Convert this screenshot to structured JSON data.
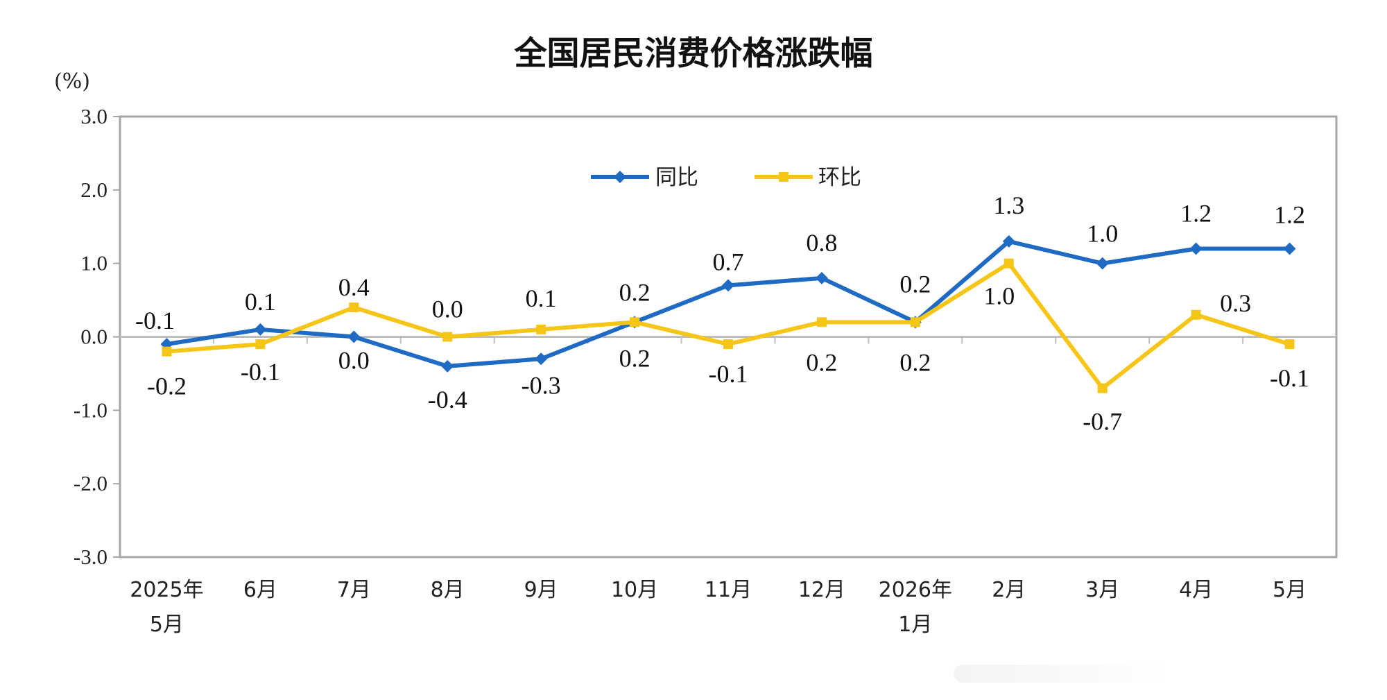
{
  "chart_data": {
    "type": "line",
    "title": "全国居民消费价格涨跌幅",
    "ylabel": "(%)",
    "xlabel": "",
    "ylim": [
      -3.0,
      3.0
    ],
    "y_ticks": [
      "3.0",
      "2.0",
      "1.0",
      "0.0",
      "-1.0",
      "-2.0",
      "-3.0"
    ],
    "grid": false,
    "legend_position": "top-center",
    "categories": [
      [
        "2025年",
        "5月"
      ],
      [
        "6月"
      ],
      [
        "7月"
      ],
      [
        "8月"
      ],
      [
        "9月"
      ],
      [
        "10月"
      ],
      [
        "11月"
      ],
      [
        "12月"
      ],
      [
        "2026年",
        "1月"
      ],
      [
        "2月"
      ],
      [
        "3月"
      ],
      [
        "4月"
      ],
      [
        "5月"
      ]
    ],
    "series": [
      {
        "name": "同比",
        "color": "#1f6bc4",
        "marker": "diamond",
        "values": [
          -0.1,
          0.1,
          0.0,
          -0.4,
          -0.3,
          0.2,
          0.7,
          0.8,
          0.2,
          1.3,
          1.0,
          1.2,
          1.2
        ],
        "labels": [
          "-0.1",
          "0.1",
          "0.0",
          "-0.4",
          "-0.3",
          "0.2",
          "0.7",
          "0.8",
          "0.2",
          "1.3",
          "1.0",
          "1.2",
          "1.2"
        ]
      },
      {
        "name": "环比",
        "color": "#f5c518",
        "marker": "square",
        "values": [
          -0.2,
          -0.1,
          0.4,
          0.0,
          0.1,
          0.2,
          -0.1,
          0.2,
          0.2,
          1.0,
          -0.7,
          0.3,
          -0.1
        ],
        "labels": [
          "-0.2",
          "-0.1",
          "0.4",
          "0.0",
          "0.1",
          "0.2",
          "-0.1",
          "0.2",
          "0.2",
          "1.0",
          "-0.7",
          "0.3",
          "-0.1"
        ]
      }
    ]
  }
}
